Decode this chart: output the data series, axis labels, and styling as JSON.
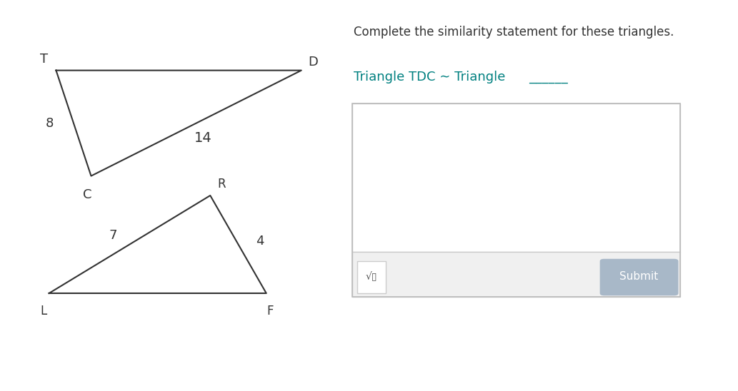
{
  "bg_color": "#ffffff",
  "tri1": {
    "T": [
      0.08,
      0.82
    ],
    "D": [
      0.43,
      0.82
    ],
    "C": [
      0.13,
      0.55
    ],
    "label_T": "T",
    "label_D": "D",
    "label_C": "C",
    "side_TC_label": "8",
    "side_CD_label": "14"
  },
  "tri2": {
    "L": [
      0.07,
      0.25
    ],
    "F": [
      0.38,
      0.25
    ],
    "R": [
      0.3,
      0.5
    ],
    "label_L": "L",
    "label_F": "F",
    "label_R": "R",
    "side_LR_label": "7",
    "side_RF_label": "4"
  },
  "triangle_color": "#333333",
  "right_panel": {
    "title": "Complete the similarity statement for these triangles.",
    "statement_prefix": "Triangle TDC ∼ Triangle ",
    "underline": "______",
    "title_color": "#333333",
    "statement_color": "#008080",
    "submit_text": "Submit",
    "submit_color": "#a8b8c8",
    "submit_text_color": "#ffffff",
    "sqrt_symbol": "√▯",
    "icon_color": "#555555"
  }
}
